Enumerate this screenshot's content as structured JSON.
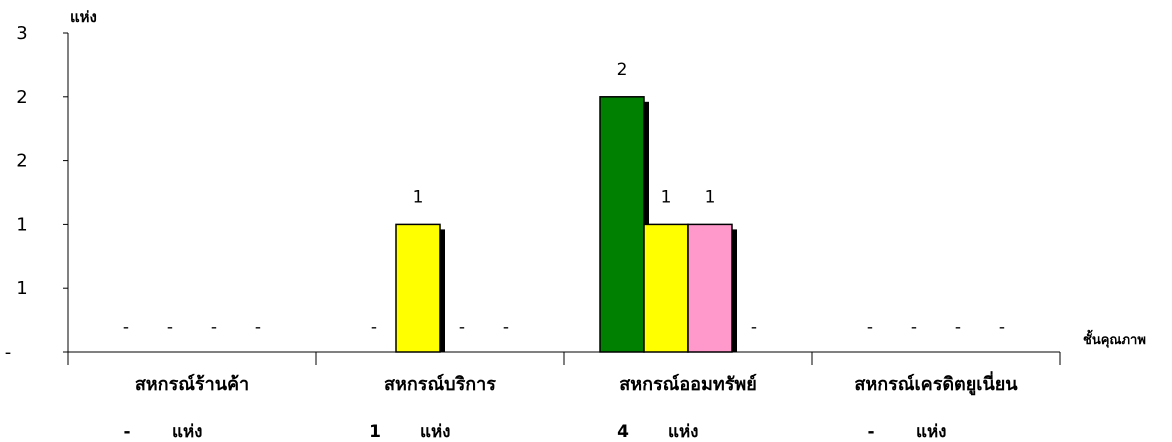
{
  "chart_data": {
    "type": "bar",
    "ylabel": "แห่ง",
    "xlabel": "ชั้นคุณภาพ",
    "ylim": [
      0,
      2.5
    ],
    "y_ticks": [
      {
        "value": 0,
        "label": "-"
      },
      {
        "value": 0.5,
        "label": "1"
      },
      {
        "value": 1.0,
        "label": "1"
      },
      {
        "value": 1.5,
        "label": "2"
      },
      {
        "value": 2.0,
        "label": "2"
      },
      {
        "value": 2.5,
        "label": "3"
      }
    ],
    "categories": [
      "สหกรณ์ร้านค้า",
      "สหกรณ์บริการ",
      "สหกรณ์ออมทรัพย์",
      "สหกรณ์เครดิตยูเนี่ยน"
    ],
    "category_totals": [
      {
        "count": "-",
        "unit": "แห่ง"
      },
      {
        "count": "1",
        "unit": "แห่ง"
      },
      {
        "count": "4",
        "unit": "แห่ง"
      },
      {
        "count": "-",
        "unit": "แห่ง"
      }
    ],
    "zero_label": "-",
    "series": [
      {
        "color": "#008000",
        "values": [
          0,
          0,
          2,
          0
        ]
      },
      {
        "color": "#FFFF00",
        "values": [
          0,
          1,
          1,
          0
        ]
      },
      {
        "color": "#FF99CC",
        "values": [
          0,
          0,
          1,
          0
        ]
      },
      {
        "color": "#FFFFFF",
        "values": [
          0,
          0,
          0,
          0
        ]
      }
    ]
  }
}
